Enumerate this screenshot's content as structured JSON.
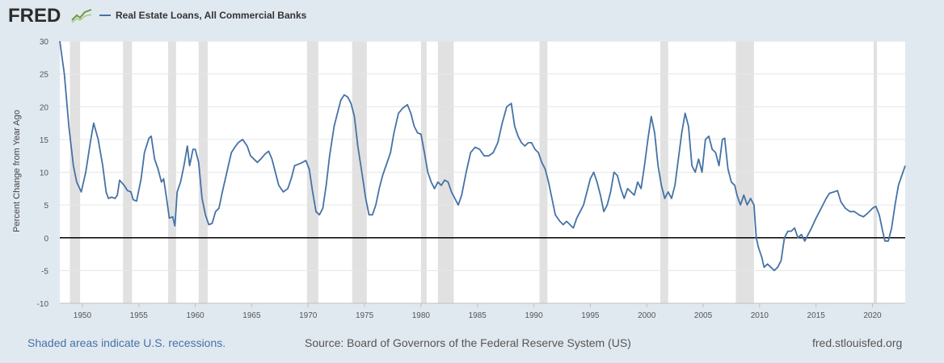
{
  "header": {
    "logo_text": "FRED",
    "legend_label": "Real Estate Loans, All Commercial Banks",
    "legend_color": "#4572a7"
  },
  "footer": {
    "recession_note": "Shaded areas indicate U.S. recessions.",
    "source": "Source: Board of Governors of the Federal Reserve System (US)",
    "site": "fred.stlouisfed.org"
  },
  "chart_data": {
    "type": "line",
    "title": "",
    "xlabel": "",
    "ylabel": "Percent Change from Year Ago",
    "xlim": [
      1948.0,
      2022.9
    ],
    "ylim": [
      -10,
      30
    ],
    "x_ticks": [
      1950,
      1955,
      1960,
      1965,
      1970,
      1975,
      1980,
      1985,
      1990,
      1995,
      2000,
      2005,
      2010,
      2015,
      2020
    ],
    "y_ticks": [
      -10,
      -5,
      0,
      5,
      10,
      15,
      20,
      25,
      30
    ],
    "zero_line": true,
    "recessions": [
      [
        1948.9,
        1949.8
      ],
      [
        1953.6,
        1954.4
      ],
      [
        1957.6,
        1958.3
      ],
      [
        1960.3,
        1961.1
      ],
      [
        1969.9,
        1970.9
      ],
      [
        1973.9,
        1975.2
      ],
      [
        1980.0,
        1980.5
      ],
      [
        1981.5,
        1982.9
      ],
      [
        1990.5,
        1991.2
      ],
      [
        2001.2,
        2001.9
      ],
      [
        2007.9,
        2009.5
      ],
      [
        2020.1,
        2020.4
      ]
    ],
    "series": [
      {
        "name": "Real Estate Loans, All Commercial Banks",
        "color": "#4572a7",
        "points": [
          [
            1948.0,
            30.0
          ],
          [
            1948.4,
            25.0
          ],
          [
            1948.8,
            17.0
          ],
          [
            1949.2,
            11.0
          ],
          [
            1949.5,
            8.5
          ],
          [
            1949.9,
            7.0
          ],
          [
            1950.3,
            10.0
          ],
          [
            1950.7,
            14.5
          ],
          [
            1951.0,
            17.5
          ],
          [
            1951.4,
            15.0
          ],
          [
            1951.8,
            11.0
          ],
          [
            1952.1,
            7.0
          ],
          [
            1952.3,
            6.0
          ],
          [
            1952.6,
            6.2
          ],
          [
            1952.9,
            6.0
          ],
          [
            1953.1,
            6.5
          ],
          [
            1953.3,
            8.8
          ],
          [
            1953.7,
            8.0
          ],
          [
            1954.0,
            7.2
          ],
          [
            1954.3,
            7.0
          ],
          [
            1954.5,
            5.8
          ],
          [
            1954.8,
            5.6
          ],
          [
            1955.2,
            9.0
          ],
          [
            1955.5,
            13.0
          ],
          [
            1955.9,
            15.2
          ],
          [
            1956.1,
            15.5
          ],
          [
            1956.4,
            12.0
          ],
          [
            1956.7,
            10.5
          ],
          [
            1957.0,
            8.5
          ],
          [
            1957.2,
            9.0
          ],
          [
            1957.5,
            5.5
          ],
          [
            1957.7,
            3.0
          ],
          [
            1958.0,
            3.2
          ],
          [
            1958.2,
            1.8
          ],
          [
            1958.4,
            7.0
          ],
          [
            1958.7,
            8.5
          ],
          [
            1959.0,
            11.0
          ],
          [
            1959.3,
            14.0
          ],
          [
            1959.5,
            11.0
          ],
          [
            1959.8,
            13.5
          ],
          [
            1960.0,
            13.5
          ],
          [
            1960.3,
            11.5
          ],
          [
            1960.6,
            6.0
          ],
          [
            1960.9,
            3.5
          ],
          [
            1961.2,
            2.0
          ],
          [
            1961.5,
            2.2
          ],
          [
            1961.8,
            4.0
          ],
          [
            1962.1,
            4.5
          ],
          [
            1962.4,
            7.0
          ],
          [
            1962.8,
            10.0
          ],
          [
            1963.2,
            13.0
          ],
          [
            1963.5,
            13.8
          ],
          [
            1963.8,
            14.5
          ],
          [
            1964.2,
            15.0
          ],
          [
            1964.6,
            14.0
          ],
          [
            1964.9,
            12.5
          ],
          [
            1965.2,
            12.0
          ],
          [
            1965.5,
            11.5
          ],
          [
            1965.8,
            12.0
          ],
          [
            1966.2,
            12.8
          ],
          [
            1966.5,
            13.2
          ],
          [
            1966.8,
            12.0
          ],
          [
            1967.1,
            10.0
          ],
          [
            1967.4,
            8.0
          ],
          [
            1967.8,
            7.0
          ],
          [
            1968.2,
            7.5
          ],
          [
            1968.5,
            9.0
          ],
          [
            1968.8,
            11.0
          ],
          [
            1969.1,
            11.2
          ],
          [
            1969.5,
            11.5
          ],
          [
            1969.8,
            11.8
          ],
          [
            1970.1,
            10.5
          ],
          [
            1970.4,
            7.0
          ],
          [
            1970.7,
            4.0
          ],
          [
            1971.0,
            3.5
          ],
          [
            1971.3,
            4.5
          ],
          [
            1971.6,
            8.0
          ],
          [
            1971.9,
            12.5
          ],
          [
            1972.3,
            17.0
          ],
          [
            1972.6,
            19.0
          ],
          [
            1972.9,
            21.0
          ],
          [
            1973.2,
            21.8
          ],
          [
            1973.5,
            21.5
          ],
          [
            1973.8,
            20.5
          ],
          [
            1974.1,
            18.5
          ],
          [
            1974.4,
            14.0
          ],
          [
            1974.8,
            9.5
          ],
          [
            1975.1,
            6.0
          ],
          [
            1975.4,
            3.5
          ],
          [
            1975.7,
            3.5
          ],
          [
            1976.0,
            5.0
          ],
          [
            1976.3,
            7.5
          ],
          [
            1976.6,
            9.5
          ],
          [
            1976.9,
            11.0
          ],
          [
            1977.3,
            13.0
          ],
          [
            1977.6,
            16.0
          ],
          [
            1978.0,
            19.0
          ],
          [
            1978.4,
            19.8
          ],
          [
            1978.8,
            20.3
          ],
          [
            1979.1,
            19.0
          ],
          [
            1979.4,
            17.0
          ],
          [
            1979.7,
            16.0
          ],
          [
            1980.0,
            15.8
          ],
          [
            1980.3,
            13.0
          ],
          [
            1980.6,
            10.0
          ],
          [
            1980.9,
            8.5
          ],
          [
            1981.2,
            7.5
          ],
          [
            1981.5,
            8.5
          ],
          [
            1981.8,
            8.0
          ],
          [
            1982.1,
            8.8
          ],
          [
            1982.4,
            8.5
          ],
          [
            1982.7,
            7.0
          ],
          [
            1983.0,
            6.0
          ],
          [
            1983.3,
            5.0
          ],
          [
            1983.6,
            6.5
          ],
          [
            1984.0,
            10.0
          ],
          [
            1984.4,
            13.0
          ],
          [
            1984.8,
            13.8
          ],
          [
            1985.2,
            13.5
          ],
          [
            1985.6,
            12.5
          ],
          [
            1986.0,
            12.5
          ],
          [
            1986.4,
            13.0
          ],
          [
            1986.8,
            14.5
          ],
          [
            1987.2,
            17.5
          ],
          [
            1987.6,
            20.0
          ],
          [
            1988.0,
            20.5
          ],
          [
            1988.3,
            17.0
          ],
          [
            1988.6,
            15.5
          ],
          [
            1988.9,
            14.5
          ],
          [
            1989.2,
            14.0
          ],
          [
            1989.5,
            14.5
          ],
          [
            1989.8,
            14.5
          ],
          [
            1990.1,
            13.5
          ],
          [
            1990.4,
            13.0
          ],
          [
            1990.7,
            11.5
          ],
          [
            1991.0,
            10.5
          ],
          [
            1991.3,
            8.5
          ],
          [
            1991.6,
            6.0
          ],
          [
            1991.9,
            3.5
          ],
          [
            1992.3,
            2.5
          ],
          [
            1992.6,
            2.0
          ],
          [
            1992.9,
            2.5
          ],
          [
            1993.2,
            2.0
          ],
          [
            1993.5,
            1.5
          ],
          [
            1993.8,
            3.0
          ],
          [
            1994.1,
            4.0
          ],
          [
            1994.4,
            5.0
          ],
          [
            1994.7,
            7.0
          ],
          [
            1995.0,
            9.0
          ],
          [
            1995.3,
            10.0
          ],
          [
            1995.6,
            8.5
          ],
          [
            1995.9,
            6.5
          ],
          [
            1996.2,
            4.0
          ],
          [
            1996.5,
            5.0
          ],
          [
            1996.8,
            7.0
          ],
          [
            1997.1,
            10.0
          ],
          [
            1997.4,
            9.5
          ],
          [
            1997.7,
            7.5
          ],
          [
            1998.0,
            6.0
          ],
          [
            1998.3,
            7.5
          ],
          [
            1998.6,
            7.0
          ],
          [
            1998.9,
            6.5
          ],
          [
            1999.2,
            8.5
          ],
          [
            1999.5,
            7.5
          ],
          [
            1999.8,
            11.0
          ],
          [
            2000.1,
            15.0
          ],
          [
            2000.4,
            18.5
          ],
          [
            2000.7,
            16.0
          ],
          [
            2001.0,
            11.0
          ],
          [
            2001.3,
            8.0
          ],
          [
            2001.6,
            6.0
          ],
          [
            2001.9,
            7.0
          ],
          [
            2002.2,
            6.0
          ],
          [
            2002.5,
            8.0
          ],
          [
            2002.8,
            12.0
          ],
          [
            2003.1,
            16.0
          ],
          [
            2003.4,
            19.0
          ],
          [
            2003.7,
            17.0
          ],
          [
            2004.0,
            11.0
          ],
          [
            2004.3,
            10.0
          ],
          [
            2004.6,
            12.0
          ],
          [
            2004.9,
            10.0
          ],
          [
            2005.2,
            15.0
          ],
          [
            2005.5,
            15.5
          ],
          [
            2005.8,
            13.5
          ],
          [
            2006.1,
            13.0
          ],
          [
            2006.4,
            11.0
          ],
          [
            2006.7,
            15.0
          ],
          [
            2006.9,
            15.2
          ],
          [
            2007.2,
            10.5
          ],
          [
            2007.5,
            8.5
          ],
          [
            2007.8,
            8.0
          ],
          [
            2008.0,
            6.5
          ],
          [
            2008.3,
            5.0
          ],
          [
            2008.6,
            6.5
          ],
          [
            2008.9,
            5.0
          ],
          [
            2009.2,
            6.0
          ],
          [
            2009.5,
            5.0
          ],
          [
            2009.7,
            0.0
          ],
          [
            2009.9,
            -1.5
          ],
          [
            2010.2,
            -3.0
          ],
          [
            2010.4,
            -4.5
          ],
          [
            2010.7,
            -4.0
          ],
          [
            2011.0,
            -4.5
          ],
          [
            2011.3,
            -5.0
          ],
          [
            2011.6,
            -4.5
          ],
          [
            2011.9,
            -3.5
          ],
          [
            2012.2,
            0.0
          ],
          [
            2012.5,
            1.0
          ],
          [
            2012.8,
            1.0
          ],
          [
            2013.1,
            1.5
          ],
          [
            2013.4,
            0.0
          ],
          [
            2013.7,
            0.5
          ],
          [
            2014.0,
            -0.5
          ],
          [
            2014.3,
            0.5
          ],
          [
            2014.6,
            1.5
          ],
          [
            2015.0,
            3.0
          ],
          [
            2015.3,
            4.0
          ],
          [
            2015.6,
            5.0
          ],
          [
            2015.9,
            6.0
          ],
          [
            2016.2,
            6.8
          ],
          [
            2016.6,
            7.0
          ],
          [
            2016.9,
            7.2
          ],
          [
            2017.2,
            5.5
          ],
          [
            2017.6,
            4.5
          ],
          [
            2018.0,
            4.0
          ],
          [
            2018.4,
            4.0
          ],
          [
            2018.8,
            3.5
          ],
          [
            2019.2,
            3.2
          ],
          [
            2019.6,
            3.8
          ],
          [
            2020.0,
            4.5
          ],
          [
            2020.3,
            4.8
          ],
          [
            2020.6,
            3.5
          ],
          [
            2020.9,
            1.0
          ],
          [
            2021.1,
            -0.5
          ],
          [
            2021.4,
            -0.5
          ],
          [
            2021.7,
            1.5
          ],
          [
            2022.0,
            5.0
          ],
          [
            2022.3,
            8.0
          ],
          [
            2022.6,
            9.5
          ],
          [
            2022.9,
            11.0
          ]
        ]
      }
    ]
  }
}
